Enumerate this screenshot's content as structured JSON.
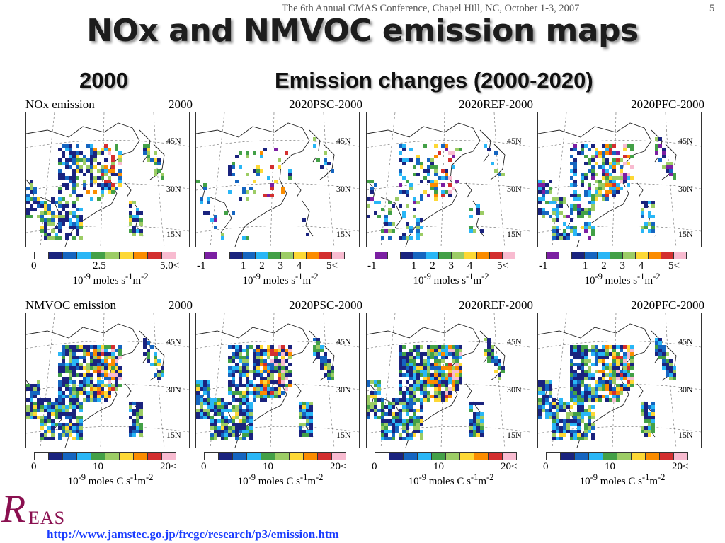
{
  "header": {
    "conference": "The 6th Annual CMAS Conference, Chapel Hill, NC, October 1-3, 2007",
    "slide_number": "5"
  },
  "title": "NOx and NMVOC emission maps",
  "subtitles": {
    "left": "2000",
    "right": "Emission changes (2000-2020)"
  },
  "lat_labels": [
    "45N",
    "30N",
    "15N"
  ],
  "colorbars": {
    "abs": [
      "#ffffff",
      "#1a237e",
      "#1565c0",
      "#29b6f6",
      "#43a047",
      "#9ccc65",
      "#fdd835",
      "#fb8c00",
      "#d32f2f",
      "#f8bbd0"
    ],
    "diff": [
      "#7b1fa2",
      "#ffffff",
      "#1a237e",
      "#1565c0",
      "#29b6f6",
      "#43a047",
      "#9ccc65",
      "#fdd835",
      "#fb8c00",
      "#d32f2f",
      "#f8bbd0"
    ]
  },
  "panels": [
    {
      "label_left": "NOx emission",
      "label_right": "2000",
      "ticks": [
        "0",
        "2.5",
        "5.0<"
      ],
      "unit": "10-9 moles s-1m-2"
    },
    {
      "label_left": "",
      "label_right": "2020PSC-2000",
      "ticks": [
        "-1",
        "1",
        "2",
        "3",
        "4",
        "5<"
      ],
      "unit": "10-9 moles s-1m-2"
    },
    {
      "label_left": "",
      "label_right": "2020REF-2000",
      "ticks": [
        "-1",
        "1",
        "2",
        "3",
        "4",
        "5<"
      ],
      "unit": "10-9 moles s-1m-2"
    },
    {
      "label_left": "",
      "label_right": "2020PFC-2000",
      "ticks": [
        "-1",
        "1",
        "2",
        "3",
        "4",
        "5<"
      ],
      "unit": "10-9 moles s-1m-2"
    },
    {
      "label_left": "NMVOC emission",
      "label_right": "2000",
      "ticks": [
        "0",
        "10",
        "20<"
      ],
      "unit": "10-9 moles C s-1m-2"
    },
    {
      "label_left": "",
      "label_right": "2020PSC-2000",
      "ticks": [
        "0",
        "10",
        "20<"
      ],
      "unit": "10-9 moles C s-1m-2"
    },
    {
      "label_left": "",
      "label_right": "2020REF-2000",
      "ticks": [
        "0",
        "10",
        "20<"
      ],
      "unit": "10-9 moles C s-1m-2"
    },
    {
      "label_left": "",
      "label_right": "2020PFC-2000",
      "ticks": [
        "0",
        "10",
        "20<"
      ],
      "unit": "10-9 moles C s-1m-2"
    }
  ],
  "logo": {
    "letter": "R",
    "rest": "EAS"
  },
  "footer_url": "http://www.jamstec.go.jp/frcgc/research/p3/emission.htm"
}
